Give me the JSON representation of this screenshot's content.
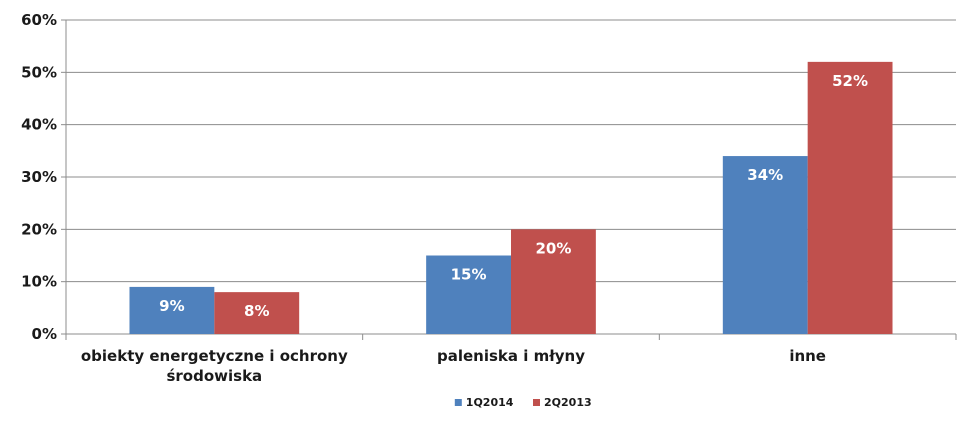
{
  "chart_data": {
    "type": "bar",
    "categories": [
      [
        "obiekty energetyczne i ochrony",
        "środowiska"
      ],
      [
        "paleniska i młyny"
      ],
      [
        "inne"
      ]
    ],
    "series": [
      {
        "name": "1Q2014",
        "values": [
          9,
          15,
          34
        ],
        "labels": [
          "9%",
          "15%",
          "34%"
        ],
        "color": "#4f81bd"
      },
      {
        "name": "2Q2013",
        "values": [
          8,
          20,
          52
        ],
        "labels": [
          "8%",
          "20%",
          "52%"
        ],
        "color": "#c0504d"
      }
    ],
    "ylim": [
      0,
      60
    ],
    "yticks": [
      "0%",
      "10%",
      "20%",
      "30%",
      "40%",
      "50%",
      "60%"
    ],
    "grid": true,
    "legend_position": "bottom",
    "title": "",
    "xlabel": "",
    "ylabel": ""
  }
}
